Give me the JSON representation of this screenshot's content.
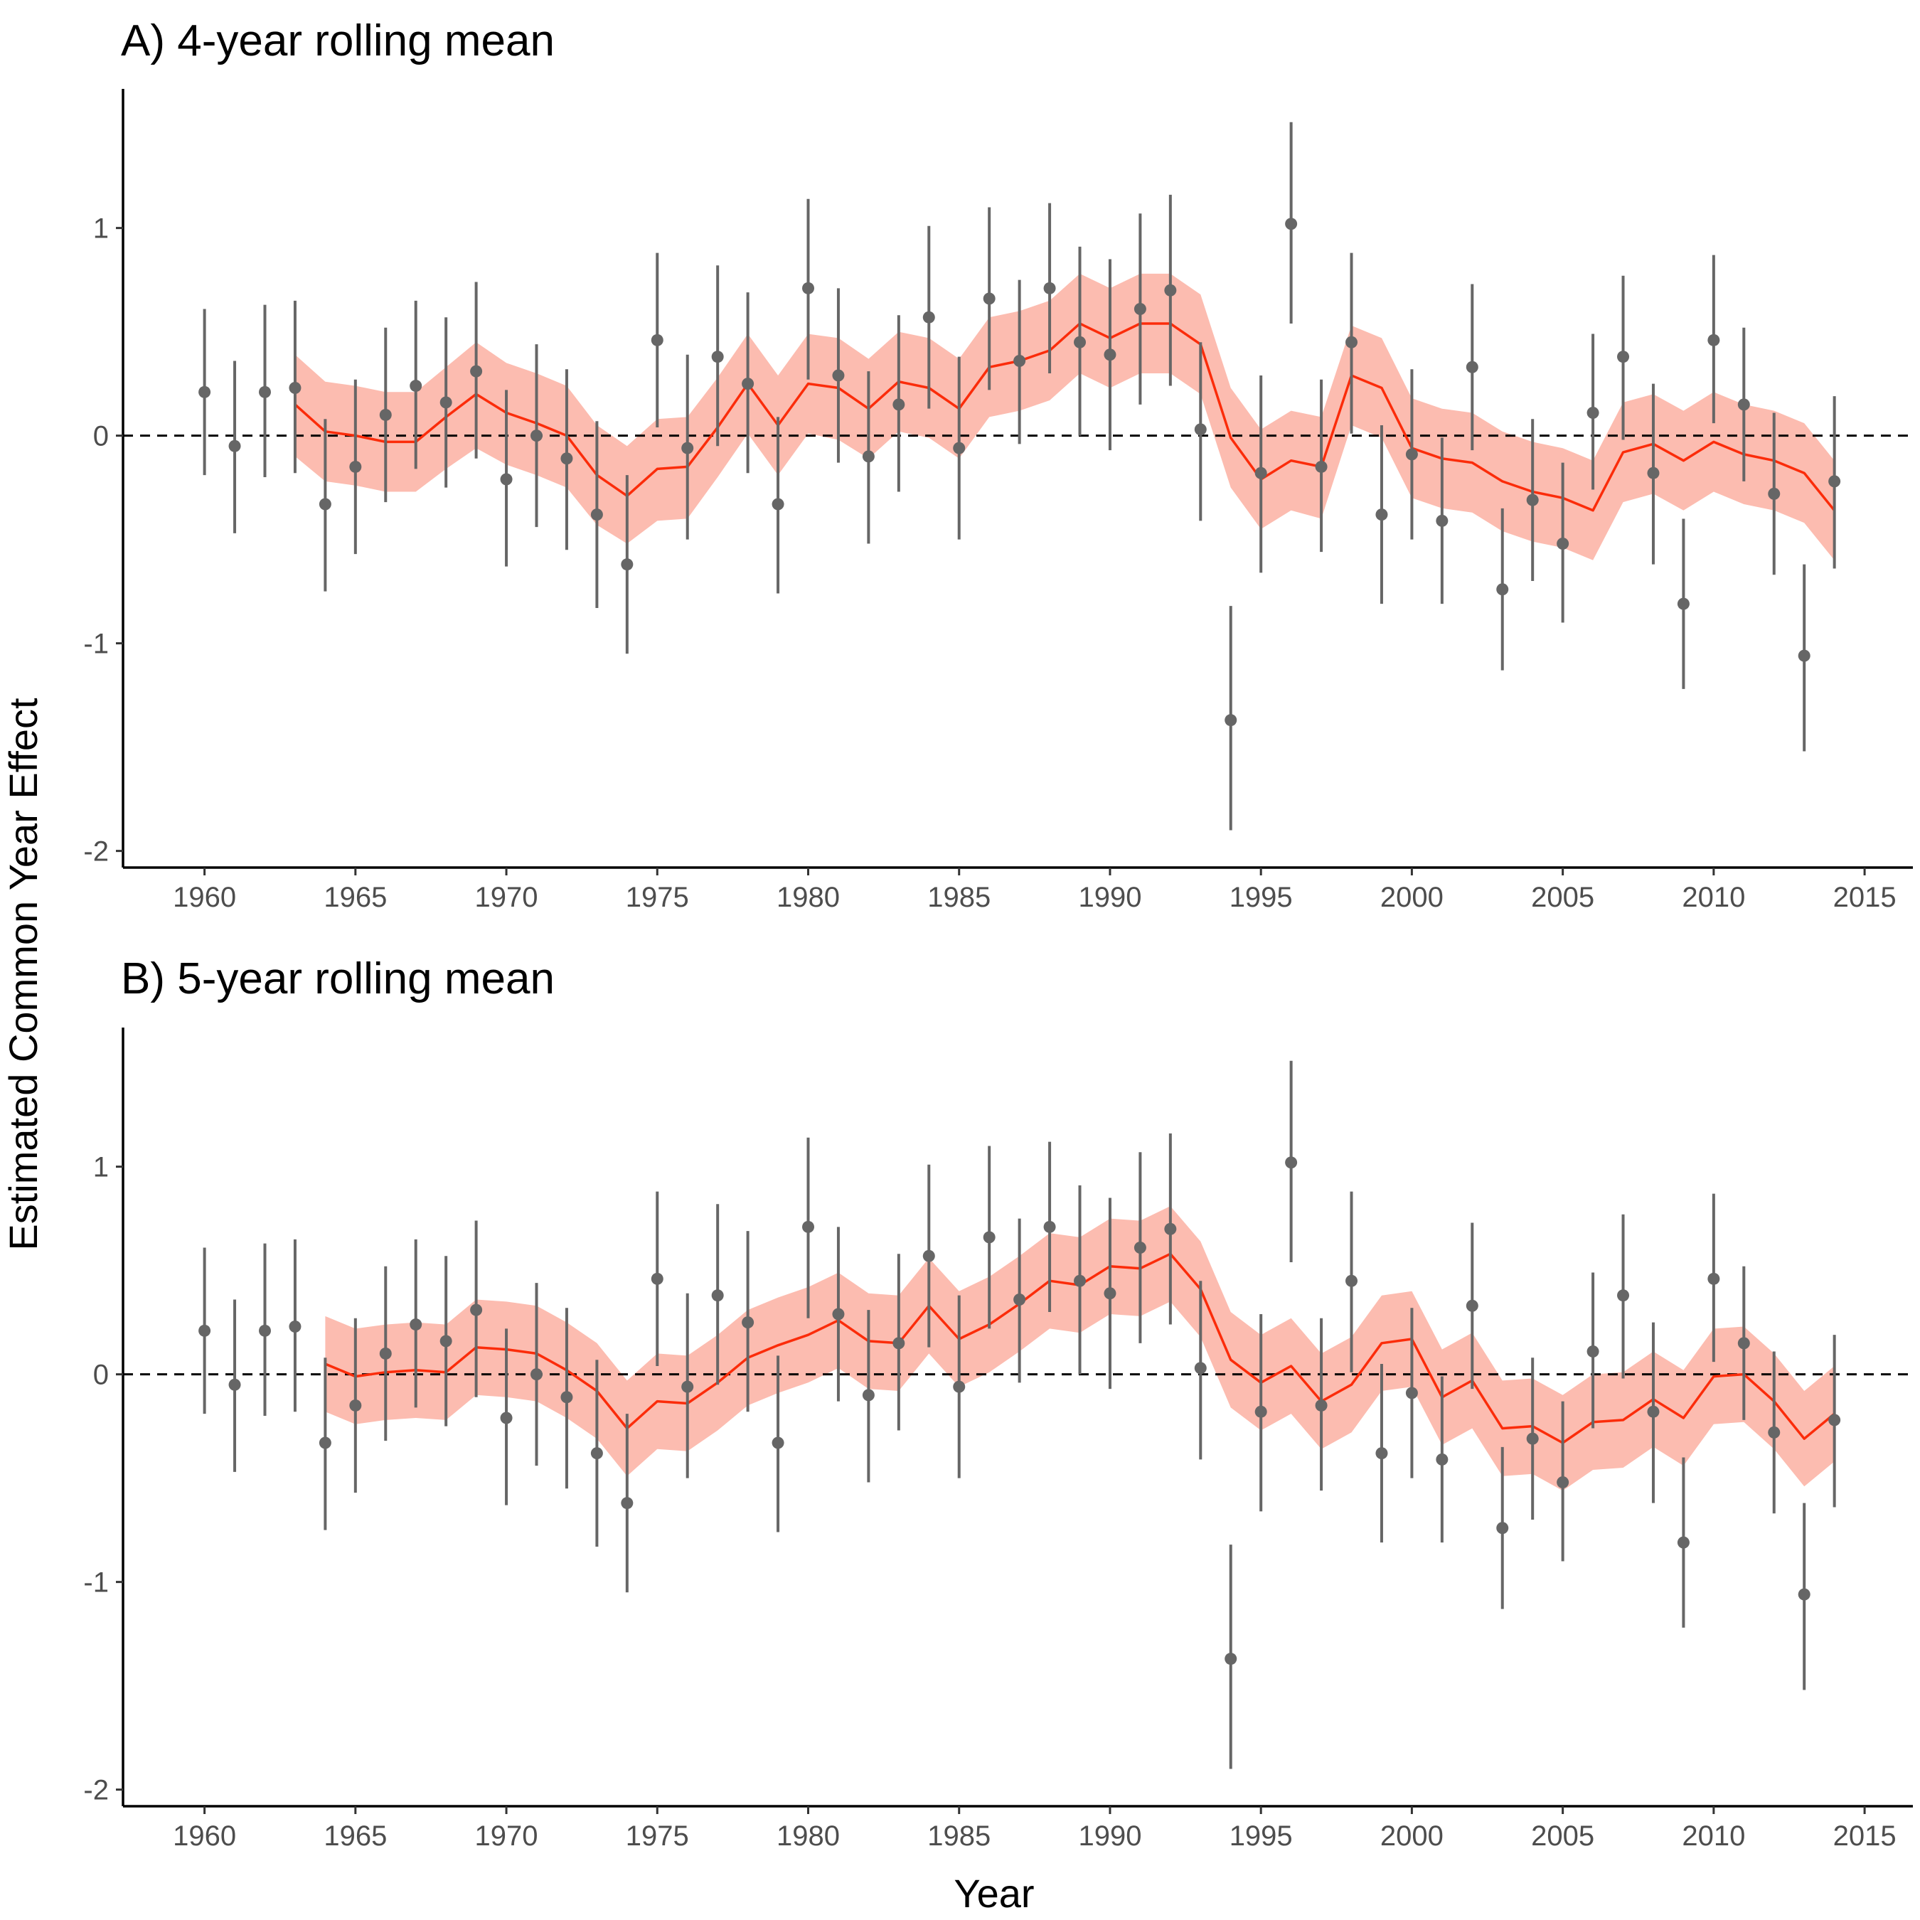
{
  "figure": {
    "ylabel": "Estimated Common Year Effect",
    "xlabel": "Year",
    "colors": {
      "band": "#fcbcb0",
      "line": "#fb2c0a",
      "point": "#666666",
      "axis": "#000000"
    }
  },
  "chart_data": [
    {
      "type": "line",
      "title": "A) 4-year rolling mean",
      "xlabel": "Year",
      "ylabel": "Estimated Common Year Effect",
      "xlim": [
        1957.3,
        2016.6
      ],
      "ylim": [
        -2.08,
        1.67
      ],
      "xticks": [
        1960,
        1965,
        1970,
        1975,
        1980,
        1985,
        1990,
        1995,
        2000,
        2005,
        2010,
        2015
      ],
      "yticks": [
        -2,
        -1,
        0,
        1
      ],
      "ytick_labels": [
        "-2",
        "-1",
        "0",
        "1"
      ],
      "reference_line": 0,
      "grid": false,
      "years": [
        1960,
        1961,
        1962,
        1963,
        1964,
        1965,
        1966,
        1967,
        1968,
        1969,
        1970,
        1971,
        1972,
        1973,
        1974,
        1975,
        1976,
        1977,
        1978,
        1979,
        1980,
        1981,
        1982,
        1983,
        1984,
        1985,
        1986,
        1987,
        1988,
        1989,
        1990,
        1991,
        1992,
        1993,
        1994,
        1995,
        1996,
        1997,
        1998,
        1999,
        2000,
        2001,
        2002,
        2003,
        2004,
        2005,
        2006,
        2007,
        2008,
        2009,
        2010,
        2011,
        2012,
        2013,
        2014
      ],
      "point_estimates": [
        0.21,
        -0.05,
        0.21,
        0.23,
        -0.33,
        -0.15,
        0.1,
        0.24,
        0.16,
        0.31,
        -0.21,
        0.0,
        -0.11,
        -0.38,
        -0.62,
        0.46,
        -0.06,
        0.38,
        0.25,
        -0.33,
        0.71,
        0.29,
        -0.1,
        0.15,
        0.57,
        -0.06,
        0.66,
        0.36,
        0.71,
        0.45,
        0.39,
        0.61,
        0.7,
        0.03,
        -1.37,
        -0.18,
        1.02,
        -0.15,
        0.45,
        -0.38,
        -0.09,
        -0.41,
        0.33,
        -0.74,
        -0.31,
        -0.52,
        0.11,
        0.38,
        -0.18,
        -0.81,
        0.46,
        0.15,
        -0.28,
        -1.06,
        -0.22
      ],
      "error_lower": [
        -0.19,
        -0.47,
        -0.2,
        -0.18,
        -0.75,
        -0.57,
        -0.32,
        -0.16,
        -0.25,
        -0.11,
        -0.63,
        -0.44,
        -0.55,
        -0.83,
        -1.05,
        0.04,
        -0.5,
        -0.05,
        -0.18,
        -0.76,
        0.27,
        -0.13,
        -0.52,
        -0.27,
        0.13,
        -0.5,
        0.22,
        -0.04,
        0.3,
        0.0,
        -0.07,
        0.15,
        0.24,
        -0.41,
        -1.9,
        -0.66,
        0.54,
        -0.56,
        0.01,
        -0.81,
        -0.5,
        -0.81,
        -0.07,
        -1.13,
        -0.7,
        -0.9,
        -0.26,
        -0.02,
        -0.62,
        -1.22,
        0.06,
        -0.22,
        -0.67,
        -1.52,
        -0.64
      ],
      "error_upper": [
        0.61,
        0.36,
        0.63,
        0.65,
        0.08,
        0.27,
        0.52,
        0.65,
        0.57,
        0.74,
        0.22,
        0.44,
        0.32,
        0.07,
        -0.19,
        0.88,
        0.39,
        0.82,
        0.69,
        0.09,
        1.14,
        0.71,
        0.31,
        0.58,
        1.01,
        0.38,
        1.1,
        0.75,
        1.12,
        0.91,
        0.85,
        1.07,
        1.16,
        0.45,
        -0.82,
        0.29,
        1.51,
        0.27,
        0.88,
        0.05,
        0.32,
        -0.01,
        0.73,
        -0.35,
        0.08,
        -0.13,
        0.49,
        0.77,
        0.25,
        -0.4,
        0.87,
        0.52,
        0.11,
        -0.62,
        0.19
      ],
      "rolling_years": [
        1963,
        1964,
        1965,
        1966,
        1967,
        1968,
        1969,
        1970,
        1971,
        1972,
        1973,
        1974,
        1975,
        1976,
        1977,
        1978,
        1979,
        1980,
        1981,
        1982,
        1983,
        1984,
        1985,
        1986,
        1987,
        1988,
        1989,
        1990,
        1991,
        1992,
        1993,
        1994,
        1995,
        1996,
        1997,
        1998,
        1999,
        2000,
        2001,
        2002,
        2003,
        2004,
        2005,
        2006,
        2007,
        2008,
        2009,
        2010,
        2011,
        2012,
        2013,
        2014
      ],
      "rolling_mean": [
        0.15,
        0.02,
        0.0,
        -0.03,
        -0.03,
        0.09,
        0.2,
        0.11,
        0.06,
        0.0,
        -0.19,
        -0.29,
        -0.16,
        -0.15,
        0.04,
        0.25,
        0.05,
        0.25,
        0.23,
        0.13,
        0.26,
        0.23,
        0.13,
        0.33,
        0.36,
        0.41,
        0.54,
        0.47,
        0.54,
        0.54,
        0.44,
        -0.01,
        -0.21,
        -0.12,
        -0.15,
        0.29,
        0.23,
        -0.06,
        -0.11,
        -0.13,
        -0.22,
        -0.27,
        -0.3,
        -0.36,
        -0.08,
        -0.04,
        -0.12,
        -0.03,
        -0.09,
        -0.12,
        -0.18,
        -0.36
      ],
      "band_lower": [
        -0.1,
        -0.22,
        -0.24,
        -0.27,
        -0.27,
        -0.16,
        -0.06,
        -0.14,
        -0.19,
        -0.25,
        -0.43,
        -0.52,
        -0.41,
        -0.4,
        -0.2,
        0.01,
        -0.19,
        0.01,
        -0.02,
        -0.11,
        0.02,
        -0.01,
        -0.11,
        0.09,
        0.12,
        0.17,
        0.3,
        0.23,
        0.3,
        0.3,
        0.2,
        -0.25,
        -0.45,
        -0.36,
        -0.4,
        0.05,
        -0.01,
        -0.3,
        -0.35,
        -0.37,
        -0.46,
        -0.51,
        -0.54,
        -0.6,
        -0.32,
        -0.28,
        -0.36,
        -0.27,
        -0.33,
        -0.36,
        -0.42,
        -0.6
      ],
      "band_upper": [
        0.39,
        0.26,
        0.24,
        0.21,
        0.21,
        0.33,
        0.45,
        0.35,
        0.3,
        0.24,
        0.05,
        -0.05,
        0.08,
        0.09,
        0.28,
        0.49,
        0.29,
        0.49,
        0.47,
        0.37,
        0.5,
        0.47,
        0.37,
        0.57,
        0.6,
        0.65,
        0.78,
        0.71,
        0.78,
        0.78,
        0.68,
        0.23,
        0.03,
        0.12,
        0.09,
        0.53,
        0.47,
        0.18,
        0.13,
        0.11,
        0.02,
        -0.03,
        -0.06,
        -0.12,
        0.16,
        0.2,
        0.12,
        0.21,
        0.15,
        0.12,
        0.06,
        -0.12
      ]
    },
    {
      "type": "line",
      "title": "B) 5-year rolling mean",
      "xlabel": "Year",
      "ylabel": "Estimated Common Year Effect",
      "xlim": [
        1957.3,
        2016.6
      ],
      "ylim": [
        -2.08,
        1.67
      ],
      "xticks": [
        1960,
        1965,
        1970,
        1975,
        1980,
        1985,
        1990,
        1995,
        2000,
        2005,
        2010,
        2015
      ],
      "yticks": [
        -2,
        -1,
        0,
        1
      ],
      "ytick_labels": [
        "-2",
        "-1",
        "0",
        "1"
      ],
      "reference_line": 0,
      "grid": false,
      "years": [
        1960,
        1961,
        1962,
        1963,
        1964,
        1965,
        1966,
        1967,
        1968,
        1969,
        1970,
        1971,
        1972,
        1973,
        1974,
        1975,
        1976,
        1977,
        1978,
        1979,
        1980,
        1981,
        1982,
        1983,
        1984,
        1985,
        1986,
        1987,
        1988,
        1989,
        1990,
        1991,
        1992,
        1993,
        1994,
        1995,
        1996,
        1997,
        1998,
        1999,
        2000,
        2001,
        2002,
        2003,
        2004,
        2005,
        2006,
        2007,
        2008,
        2009,
        2010,
        2011,
        2012,
        2013,
        2014
      ],
      "point_estimates": [
        0.21,
        -0.05,
        0.21,
        0.23,
        -0.33,
        -0.15,
        0.1,
        0.24,
        0.16,
        0.31,
        -0.21,
        0.0,
        -0.11,
        -0.38,
        -0.62,
        0.46,
        -0.06,
        0.38,
        0.25,
        -0.33,
        0.71,
        0.29,
        -0.1,
        0.15,
        0.57,
        -0.06,
        0.66,
        0.36,
        0.71,
        0.45,
        0.39,
        0.61,
        0.7,
        0.03,
        -1.37,
        -0.18,
        1.02,
        -0.15,
        0.45,
        -0.38,
        -0.09,
        -0.41,
        0.33,
        -0.74,
        -0.31,
        -0.52,
        0.11,
        0.38,
        -0.18,
        -0.81,
        0.46,
        0.15,
        -0.28,
        -1.06,
        -0.22
      ],
      "error_lower": [
        -0.19,
        -0.47,
        -0.2,
        -0.18,
        -0.75,
        -0.57,
        -0.32,
        -0.16,
        -0.25,
        -0.11,
        -0.63,
        -0.44,
        -0.55,
        -0.83,
        -1.05,
        0.04,
        -0.5,
        -0.05,
        -0.18,
        -0.76,
        0.27,
        -0.13,
        -0.52,
        -0.27,
        0.13,
        -0.5,
        0.22,
        -0.04,
        0.3,
        0.0,
        -0.07,
        0.15,
        0.24,
        -0.41,
        -1.9,
        -0.66,
        0.54,
        -0.56,
        0.01,
        -0.81,
        -0.5,
        -0.81,
        -0.07,
        -1.13,
        -0.7,
        -0.9,
        -0.26,
        -0.02,
        -0.62,
        -1.22,
        0.06,
        -0.22,
        -0.67,
        -1.52,
        -0.64
      ],
      "error_upper": [
        0.61,
        0.36,
        0.63,
        0.65,
        0.08,
        0.27,
        0.52,
        0.65,
        0.57,
        0.74,
        0.22,
        0.44,
        0.32,
        0.07,
        -0.19,
        0.88,
        0.39,
        0.82,
        0.69,
        0.09,
        1.14,
        0.71,
        0.31,
        0.58,
        1.01,
        0.38,
        1.1,
        0.75,
        1.12,
        0.91,
        0.85,
        1.07,
        1.16,
        0.45,
        -0.82,
        0.29,
        1.51,
        0.27,
        0.88,
        0.05,
        0.32,
        -0.01,
        0.73,
        -0.35,
        0.08,
        -0.13,
        0.49,
        0.77,
        0.25,
        -0.4,
        0.87,
        0.52,
        0.11,
        -0.62,
        0.19
      ],
      "rolling_years": [
        1964,
        1965,
        1966,
        1967,
        1968,
        1969,
        1970,
        1971,
        1972,
        1973,
        1974,
        1975,
        1976,
        1977,
        1978,
        1979,
        1980,
        1981,
        1982,
        1983,
        1984,
        1985,
        1986,
        1987,
        1988,
        1989,
        1990,
        1991,
        1992,
        1993,
        1994,
        1995,
        1996,
        1997,
        1998,
        1999,
        2000,
        2001,
        2002,
        2003,
        2004,
        2005,
        2006,
        2007,
        2008,
        2009,
        2010,
        2011,
        2012,
        2013,
        2014
      ],
      "rolling_mean": [
        0.05,
        -0.01,
        0.01,
        0.02,
        0.01,
        0.13,
        0.12,
        0.1,
        0.02,
        -0.08,
        -0.26,
        -0.13,
        -0.14,
        -0.04,
        0.08,
        0.14,
        0.19,
        0.26,
        0.16,
        0.15,
        0.33,
        0.17,
        0.24,
        0.34,
        0.45,
        0.43,
        0.52,
        0.51,
        0.58,
        0.41,
        0.07,
        -0.04,
        0.04,
        -0.13,
        -0.05,
        0.15,
        0.17,
        -0.11,
        -0.03,
        -0.26,
        -0.25,
        -0.33,
        -0.23,
        -0.22,
        -0.12,
        -0.21,
        -0.01,
        0.0,
        -0.13,
        -0.31,
        -0.19
      ],
      "band_lower": [
        -0.18,
        -0.24,
        -0.22,
        -0.21,
        -0.22,
        -0.1,
        -0.11,
        -0.13,
        -0.21,
        -0.31,
        -0.49,
        -0.36,
        -0.37,
        -0.27,
        -0.15,
        -0.09,
        -0.04,
        0.03,
        -0.07,
        -0.08,
        0.1,
        -0.06,
        0.01,
        0.11,
        0.22,
        0.2,
        0.29,
        0.28,
        0.35,
        0.18,
        -0.16,
        -0.27,
        -0.19,
        -0.36,
        -0.28,
        -0.08,
        -0.06,
        -0.34,
        -0.26,
        -0.49,
        -0.48,
        -0.56,
        -0.46,
        -0.45,
        -0.35,
        -0.44,
        -0.24,
        -0.23,
        -0.36,
        -0.54,
        -0.42
      ],
      "band_upper": [
        0.28,
        0.22,
        0.24,
        0.25,
        0.24,
        0.36,
        0.35,
        0.33,
        0.25,
        0.15,
        -0.03,
        0.1,
        0.09,
        0.19,
        0.31,
        0.37,
        0.42,
        0.49,
        0.39,
        0.38,
        0.56,
        0.4,
        0.47,
        0.57,
        0.68,
        0.66,
        0.75,
        0.74,
        0.81,
        0.64,
        0.3,
        0.19,
        0.27,
        0.1,
        0.18,
        0.38,
        0.4,
        0.12,
        0.2,
        -0.03,
        -0.02,
        -0.1,
        0.0,
        0.01,
        0.11,
        0.02,
        0.22,
        0.23,
        0.1,
        -0.08,
        0.04
      ]
    }
  ]
}
